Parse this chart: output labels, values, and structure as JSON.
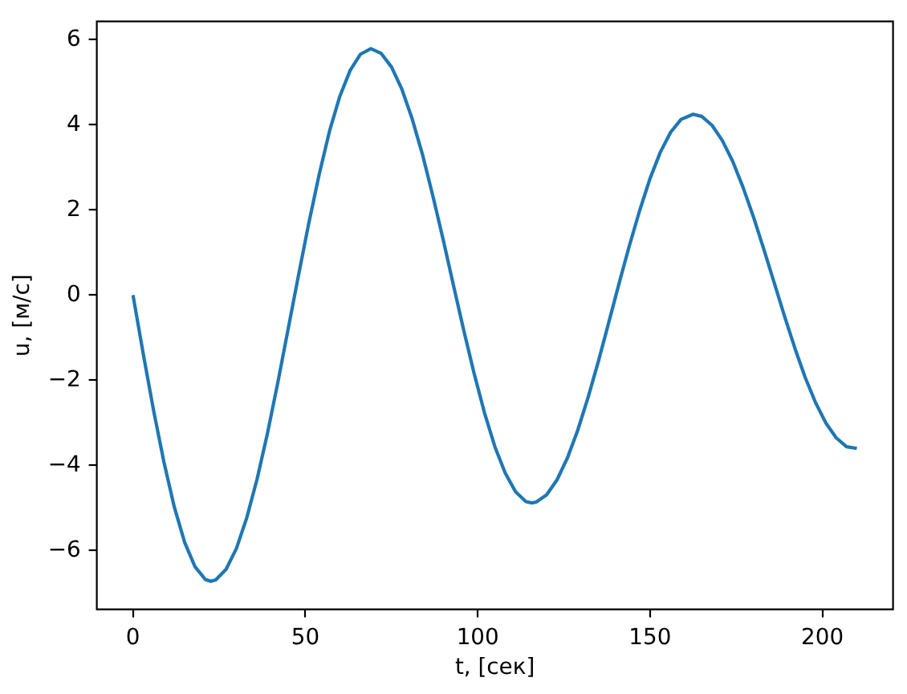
{
  "chart_data": {
    "type": "line",
    "xlabel": "t, [сек]",
    "ylabel": "u, [м/с]",
    "x": [
      0,
      3,
      6,
      9,
      12,
      15,
      18,
      21,
      22.6,
      24,
      27,
      30,
      33,
      36,
      39,
      42,
      45,
      48,
      51,
      54,
      57,
      60,
      63,
      66,
      69,
      72,
      75,
      78,
      81,
      84,
      87,
      90,
      93,
      96,
      99,
      102,
      105,
      108,
      111,
      114,
      115.7,
      117,
      120,
      123,
      126,
      129,
      132,
      135,
      138,
      141,
      144,
      147,
      150,
      153,
      156,
      159,
      162.5,
      165,
      168,
      171,
      174,
      177,
      180,
      183,
      186,
      189,
      192,
      195,
      198,
      201,
      204,
      207,
      210
    ],
    "series": [
      {
        "color": "#1f77b4",
        "values": [
          0,
          -1.39,
          -2.72,
          -3.93,
          -4.98,
          -5.81,
          -6.38,
          -6.68,
          -6.72,
          -6.69,
          -6.44,
          -5.95,
          -5.23,
          -4.32,
          -3.25,
          -2.06,
          -0.8,
          0.46,
          1.69,
          2.83,
          3.85,
          4.67,
          5.28,
          5.66,
          5.79,
          5.68,
          5.36,
          4.84,
          4.14,
          3.3,
          2.33,
          1.3,
          0.22,
          -0.84,
          -1.85,
          -2.77,
          -3.56,
          -4.18,
          -4.62,
          -4.85,
          -4.88,
          -4.86,
          -4.69,
          -4.34,
          -3.83,
          -3.18,
          -2.41,
          -1.56,
          -0.65,
          0.27,
          1.16,
          1.99,
          2.74,
          3.36,
          3.83,
          4.13,
          4.25,
          4.2,
          3.99,
          3.63,
          3.14,
          2.53,
          1.84,
          1.08,
          0.3,
          -0.49,
          -1.24,
          -1.93,
          -2.52,
          -3.0,
          -3.35,
          -3.56,
          -3.6
        ]
      }
    ],
    "xlim": [
      -10.5,
      220.5
    ],
    "xticks": [
      0,
      50,
      100,
      150,
      200
    ],
    "ylim": [
      -7.38,
      6.43
    ],
    "yticks": [
      {
        "value": -6,
        "label": "−6"
      },
      {
        "value": -4,
        "label": "−4"
      },
      {
        "value": -2,
        "label": "−2"
      },
      0,
      2,
      4,
      6
    ],
    "grid": false,
    "legend": false
  }
}
